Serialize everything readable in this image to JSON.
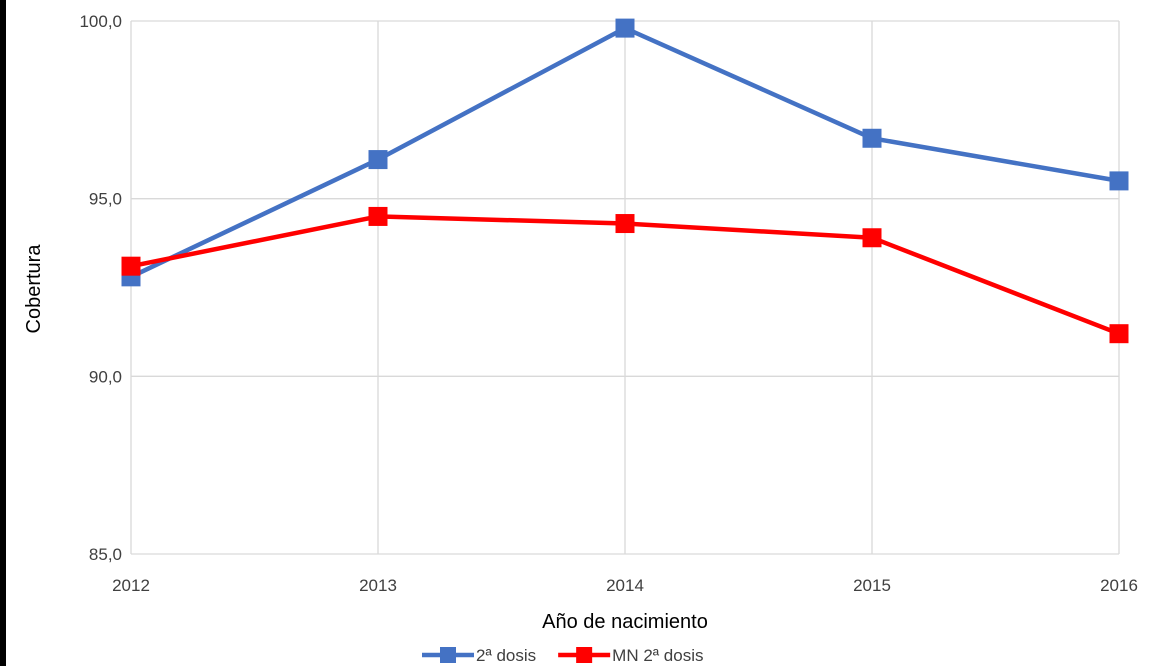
{
  "chart_data": {
    "type": "line",
    "title": "",
    "xlabel": "Año de nacimiento",
    "ylabel": "Cobertura",
    "x": [
      "2012",
      "2013",
      "2014",
      "2015",
      "2016"
    ],
    "ylim": [
      85,
      100
    ],
    "yticks": [
      85,
      90,
      95,
      100
    ],
    "ytick_labels": [
      "85,0",
      "90,0",
      "95,0",
      "100,0"
    ],
    "grid": true,
    "legend_position": "bottom",
    "series": [
      {
        "name": "2ª dosis",
        "color": "#4472C4",
        "marker": "square",
        "values": [
          92.8,
          96.1,
          99.8,
          96.7,
          95.5
        ]
      },
      {
        "name": "MN 2ª dosis",
        "color": "#FF0000",
        "marker": "square",
        "values": [
          93.1,
          94.5,
          94.3,
          93.9,
          91.2
        ]
      }
    ]
  }
}
